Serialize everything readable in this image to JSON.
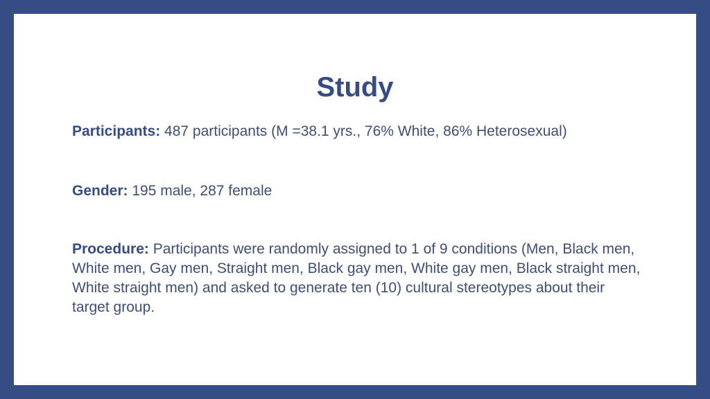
{
  "slide": {
    "title": "Study",
    "items": [
      {
        "label": "Participants:",
        "text": " 487 participants (M =38.1 yrs., 76% White, 86% Heterosexual)"
      },
      {
        "label": "Gender:",
        "text": " 195 male, 287 female"
      },
      {
        "label": "Procedure:",
        "text": " Participants were randomly assigned to 1 of 9 conditions (Men, Black men, White men, Gay men, Straight men, Black gay men, White gay men, Black straight men, White straight men) and asked to generate ten (10) cultural stereotypes about their target group."
      }
    ]
  },
  "colors": {
    "frame": "#354c85",
    "title": "#354c85",
    "body_text": "#3f4e75"
  }
}
